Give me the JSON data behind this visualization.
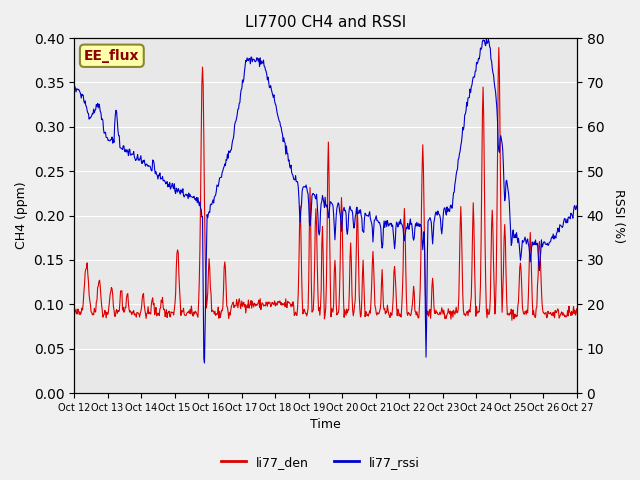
{
  "title": "LI7700 CH4 and RSSI",
  "xlabel": "Time",
  "ylabel_left": "CH4 (ppm)",
  "ylabel_right": "RSSI (%)",
  "ylim_left": [
    0.0,
    0.4
  ],
  "ylim_right": [
    0,
    80
  ],
  "yticks_left": [
    0.0,
    0.05,
    0.1,
    0.15,
    0.2,
    0.25,
    0.3,
    0.35,
    0.4
  ],
  "yticks_right": [
    0,
    10,
    20,
    30,
    40,
    50,
    60,
    70,
    80
  ],
  "xtick_labels": [
    "Oct 12",
    "Oct 13",
    "Oct 14",
    "Oct 15",
    "Oct 16",
    "Oct 17",
    "Oct 18",
    "Oct 19",
    "Oct 20",
    "Oct 21",
    "Oct 22",
    "Oct 23",
    "Oct 24",
    "Oct 25",
    "Oct 26",
    "Oct 27"
  ],
  "color_red": "#dd0000",
  "color_blue": "#0000cc",
  "bg_color": "#e8e8e8",
  "legend_labels": [
    "li77_den",
    "li77_rssi"
  ],
  "annotation_text": "EE_flux",
  "annotation_bg": "#ffffaa",
  "annotation_border": "#888833",
  "figsize": [
    6.4,
    4.8
  ],
  "dpi": 100
}
